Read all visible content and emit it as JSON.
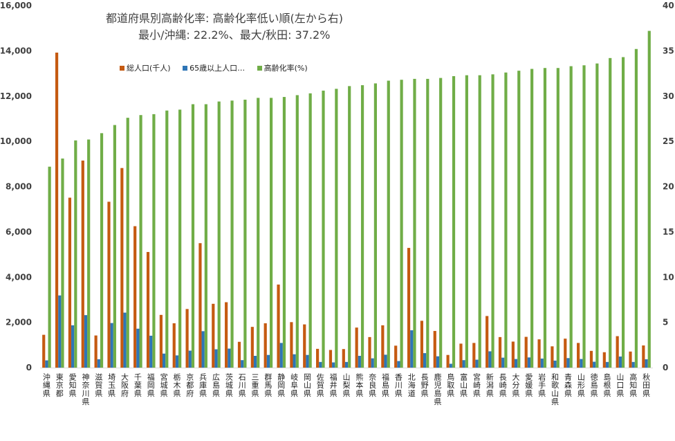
{
  "chart_data": {
    "type": "bar",
    "title": "都道府県別高齢化率: 高齢化率低い順(左から右)",
    "subtitle": "最小/沖縄: 22.2%、最大/秋田: 37.2%",
    "categories": [
      "沖縄県",
      "東京都",
      "愛知県",
      "神奈川県",
      "滋賀県",
      "埼玉県",
      "大阪府",
      "千葉県",
      "福岡県",
      "宮城県",
      "栃木県",
      "京都府",
      "兵庫県",
      "広島県",
      "茨城県",
      "石川県",
      "三重県",
      "群馬県",
      "静岡県",
      "岐阜県",
      "岡山県",
      "佐賀県",
      "福井県",
      "山梨県",
      "熊本県",
      "奈良県",
      "福島県",
      "香川県",
      "北海道",
      "長野県",
      "鹿児島県",
      "鳥取県",
      "富山県",
      "宮崎県",
      "新潟県",
      "長崎県",
      "大分県",
      "愛媛県",
      "岩手県",
      "和歌山県",
      "青森県",
      "山形県",
      "徳島県",
      "島根県",
      "山口県",
      "高知県",
      "秋田県"
    ],
    "series": [
      {
        "name": "総人口(千人)",
        "axis": "left",
        "color": "#c55a11",
        "values": [
          1450,
          13920,
          7510,
          9150,
          1420,
          7330,
          8820,
          6250,
          5110,
          2330,
          1960,
          2590,
          5500,
          2820,
          2890,
          1140,
          1800,
          1960,
          3670,
          2010,
          1910,
          830,
          780,
          820,
          1770,
          1350,
          1870,
          970,
          5290,
          2070,
          1620,
          560,
          1060,
          1090,
          2280,
          1350,
          1150,
          1360,
          1250,
          940,
          1280,
          1090,
          740,
          680,
          1390,
          710,
          980
        ]
      },
      {
        "name": "65歳以上人口…",
        "axis": "left",
        "color": "#2e75b6",
        "values": [
          320,
          3190,
          1870,
          2320,
          370,
          1970,
          2430,
          1720,
          1410,
          620,
          540,
          750,
          1610,
          810,
          840,
          330,
          520,
          560,
          1090,
          590,
          560,
          250,
          230,
          250,
          520,
          410,
          570,
          290,
          1650,
          640,
          500,
          170,
          330,
          350,
          720,
          440,
          380,
          450,
          400,
          310,
          420,
          380,
          260,
          250,
          490,
          250,
          370
        ]
      },
      {
        "name": "高齢化率(%)",
        "axis": "right",
        "color": "#70ad47",
        "values": [
          22.2,
          23.1,
          25.1,
          25.2,
          25.9,
          26.8,
          27.6,
          27.9,
          28.0,
          28.4,
          28.5,
          29.1,
          29.1,
          29.4,
          29.5,
          29.6,
          29.8,
          29.8,
          29.9,
          30.1,
          30.3,
          30.6,
          30.8,
          31.1,
          31.2,
          31.4,
          31.7,
          31.8,
          31.9,
          31.9,
          32.0,
          32.2,
          32.3,
          32.3,
          32.4,
          32.6,
          32.8,
          33.0,
          33.1,
          33.1,
          33.3,
          33.4,
          33.6,
          34.2,
          34.3,
          35.2,
          37.2
        ]
      }
    ],
    "y_left": {
      "ticks": [
        "0",
        "2,000",
        "4,000",
        "6,000",
        "8,000",
        "10,000",
        "12,000",
        "14,000",
        "16,000"
      ],
      "min": 0,
      "max": 16000
    },
    "y_right": {
      "ticks": [
        "0",
        "5",
        "10",
        "15",
        "20",
        "25",
        "30",
        "35",
        "40"
      ],
      "min": 0,
      "max": 40
    },
    "legend_position": "top-left",
    "grid": false,
    "colors": {
      "axis": "#d9d9d9",
      "text": "#404040"
    }
  }
}
